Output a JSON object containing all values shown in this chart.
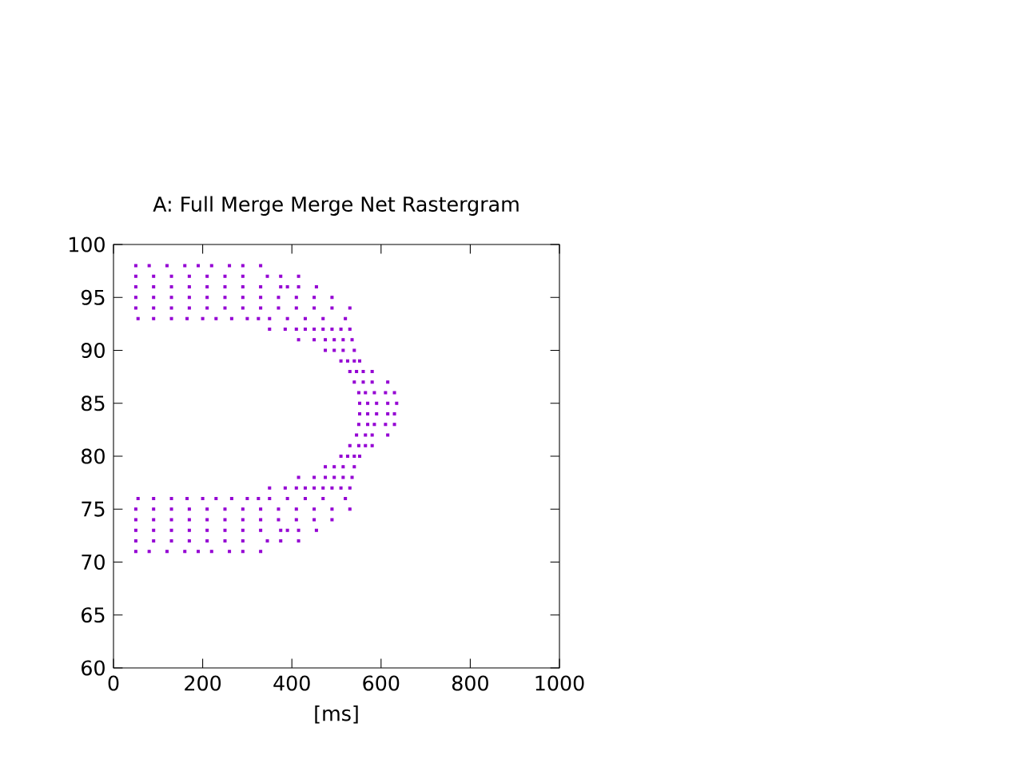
{
  "chart_data": {
    "type": "scatter",
    "title": "A: Full Merge Merge Net Rastergram",
    "xlabel": "[ms]",
    "xlim": [
      0,
      1000
    ],
    "xticks": [
      0,
      200,
      400,
      600,
      800,
      1000
    ],
    "ylim": [
      60,
      100
    ],
    "yticks": [
      60,
      65,
      70,
      75,
      80,
      85,
      90,
      95,
      100
    ],
    "marker": "square",
    "grid": false,
    "series": [
      {
        "color": "#9400d3",
        "x": [
          50,
          80,
          120,
          160,
          190,
          220,
          260,
          290,
          330,
          50,
          90,
          130,
          170,
          210,
          250,
          290,
          345,
          375,
          415,
          50,
          90,
          130,
          170,
          210,
          250,
          290,
          330,
          375,
          390,
          415,
          455,
          50,
          90,
          130,
          170,
          210,
          250,
          290,
          330,
          370,
          410,
          450,
          490,
          50,
          90,
          130,
          170,
          210,
          250,
          290,
          330,
          370,
          410,
          450,
          490,
          530,
          55,
          90,
          130,
          165,
          200,
          230,
          265,
          300,
          325,
          350,
          390,
          430,
          470,
          520,
          350,
          385,
          410,
          430,
          450,
          470,
          490,
          510,
          530,
          415,
          450,
          475,
          495,
          515,
          535,
          475,
          495,
          515,
          540,
          510,
          525,
          540,
          552,
          530,
          545,
          560,
          580,
          540,
          560,
          580,
          615,
          550,
          565,
          585,
          610,
          630,
          552,
          570,
          590,
          615,
          635,
          552,
          570,
          590,
          615,
          630,
          550,
          570,
          585,
          610,
          630,
          545,
          565,
          580,
          615,
          530,
          550,
          565,
          580,
          510,
          525,
          540,
          552,
          475,
          495,
          515,
          540,
          415,
          450,
          475,
          495,
          515,
          535,
          350,
          385,
          410,
          430,
          450,
          470,
          490,
          510,
          530,
          55,
          90,
          130,
          165,
          200,
          230,
          265,
          300,
          325,
          350,
          390,
          430,
          470,
          520,
          50,
          90,
          130,
          170,
          210,
          250,
          290,
          330,
          370,
          410,
          450,
          490,
          530,
          50,
          90,
          130,
          170,
          210,
          250,
          290,
          330,
          370,
          410,
          450,
          490,
          50,
          90,
          130,
          170,
          210,
          250,
          290,
          330,
          375,
          390,
          415,
          455,
          50,
          90,
          130,
          170,
          210,
          250,
          290,
          345,
          375,
          415,
          50,
          80,
          120,
          160,
          190,
          220,
          260,
          290,
          330
        ],
        "values": [
          98,
          98,
          98,
          98,
          98,
          98,
          98,
          98,
          98,
          97,
          97,
          97,
          97,
          97,
          97,
          97,
          97,
          97,
          97,
          96,
          96,
          96,
          96,
          96,
          96,
          96,
          96,
          96,
          96,
          96,
          96,
          95,
          95,
          95,
          95,
          95,
          95,
          95,
          95,
          95,
          95,
          95,
          95,
          94,
          94,
          94,
          94,
          94,
          94,
          94,
          94,
          94,
          94,
          94,
          94,
          94,
          93,
          93,
          93,
          93,
          93,
          93,
          93,
          93,
          93,
          93,
          93,
          93,
          93,
          93,
          92,
          92,
          92,
          92,
          92,
          92,
          92,
          92,
          92,
          91,
          91,
          91,
          91,
          91,
          91,
          90,
          90,
          90,
          90,
          89,
          89,
          89,
          89,
          88,
          88,
          88,
          88,
          87,
          87,
          87,
          87,
          86,
          86,
          86,
          86,
          86,
          85,
          85,
          85,
          85,
          85,
          84,
          84,
          84,
          84,
          84,
          83,
          83,
          83,
          83,
          83,
          82,
          82,
          82,
          82,
          81,
          81,
          81,
          81,
          80,
          80,
          80,
          80,
          79,
          79,
          79,
          79,
          78,
          78,
          78,
          78,
          78,
          78,
          77,
          77,
          77,
          77,
          77,
          77,
          77,
          77,
          77,
          76,
          76,
          76,
          76,
          76,
          76,
          76,
          76,
          76,
          76,
          76,
          76,
          76,
          76,
          75,
          75,
          75,
          75,
          75,
          75,
          75,
          75,
          75,
          75,
          75,
          75,
          75,
          74,
          74,
          74,
          74,
          74,
          74,
          74,
          74,
          74,
          74,
          74,
          74,
          73,
          73,
          73,
          73,
          73,
          73,
          73,
          73,
          73,
          73,
          73,
          73,
          72,
          72,
          72,
          72,
          72,
          72,
          72,
          72,
          72,
          72,
          71,
          71,
          71,
          71,
          71,
          71,
          71,
          71,
          71
        ]
      }
    ]
  }
}
